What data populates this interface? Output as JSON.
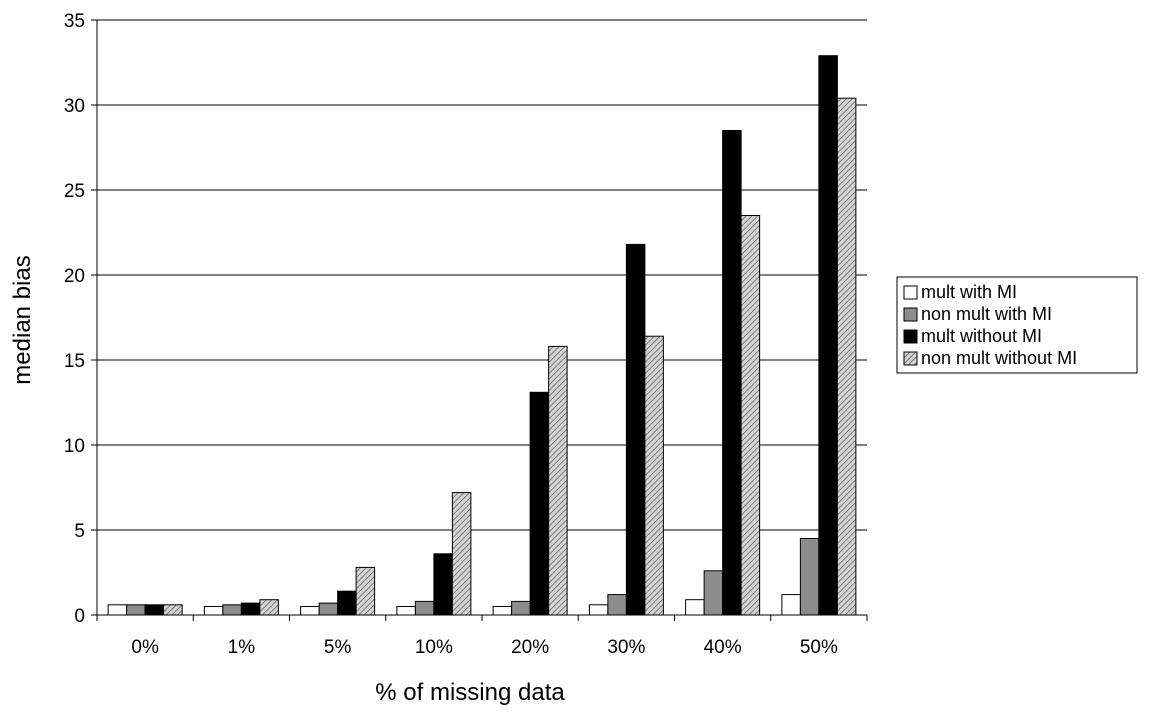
{
  "chart_data": {
    "type": "bar",
    "title": "",
    "xlabel": "% of missing data",
    "ylabel": "median bias",
    "categories": [
      "0%",
      "1%",
      "5%",
      "10%",
      "20%",
      "30%",
      "40%",
      "50%"
    ],
    "ylim": [
      0,
      35
    ],
    "yticks": [
      0,
      5,
      10,
      15,
      20,
      25,
      30,
      35
    ],
    "grid": true,
    "legend_position": "right",
    "series": [
      {
        "name": "mult with MI",
        "fill": "white",
        "values": [
          0.6,
          0.5,
          0.5,
          0.5,
          0.5,
          0.6,
          0.9,
          1.2
        ]
      },
      {
        "name": "non mult with MI",
        "fill": "gray",
        "values": [
          0.6,
          0.6,
          0.7,
          0.8,
          0.8,
          1.2,
          2.6,
          4.5
        ]
      },
      {
        "name": "mult without MI",
        "fill": "black",
        "values": [
          0.6,
          0.7,
          1.4,
          3.6,
          13.1,
          21.8,
          28.5,
          32.9
        ]
      },
      {
        "name": "non mult without MI",
        "fill": "hatch",
        "values": [
          0.6,
          0.9,
          2.8,
          7.2,
          15.8,
          16.4,
          23.5,
          30.4
        ]
      }
    ]
  }
}
